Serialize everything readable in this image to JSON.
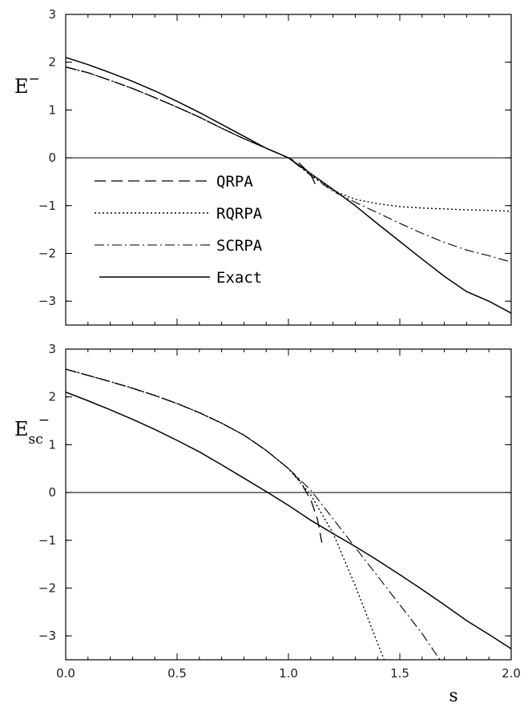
{
  "chart_data": [
    {
      "type": "line",
      "ylabel": "E",
      "ylabel_superscript": "−",
      "xlabel": "",
      "xlim": [
        0.0,
        2.0
      ],
      "ylim": [
        -3.5,
        3.0
      ],
      "yticks": [
        "3",
        "2",
        "1",
        "0",
        "−1",
        "−2",
        "−3"
      ],
      "ytick_values": [
        3,
        2,
        1,
        0,
        -1,
        -2,
        -3
      ],
      "xticks": [
        0.0,
        0.5,
        1.0,
        1.5,
        2.0
      ],
      "grid": false,
      "legend_position": "middle-left",
      "series": [
        {
          "name": "QRPA",
          "style": "dashed",
          "x": [
            0.0,
            0.1,
            0.2,
            0.3,
            0.4,
            0.5,
            0.6,
            0.7,
            0.8,
            0.9,
            1.0,
            1.05,
            1.1,
            1.12
          ],
          "y": [
            1.9,
            1.78,
            1.62,
            1.45,
            1.26,
            1.06,
            0.85,
            0.62,
            0.4,
            0.2,
            0.0,
            -0.12,
            -0.35,
            -0.55
          ]
        },
        {
          "name": "RQRPA",
          "style": "dotted",
          "x": [
            0.0,
            0.1,
            0.2,
            0.3,
            0.4,
            0.5,
            0.6,
            0.7,
            0.8,
            0.9,
            1.0,
            1.1,
            1.2,
            1.3,
            1.4,
            1.5,
            1.6,
            1.7,
            1.8,
            1.9,
            2.0
          ],
          "y": [
            1.9,
            1.78,
            1.62,
            1.45,
            1.26,
            1.06,
            0.85,
            0.62,
            0.4,
            0.2,
            0.0,
            -0.35,
            -0.68,
            -0.87,
            -0.96,
            -1.02,
            -1.05,
            -1.07,
            -1.09,
            -1.1,
            -1.12
          ]
        },
        {
          "name": "SCRPA",
          "style": "dashdot",
          "x": [
            0.0,
            0.1,
            0.2,
            0.3,
            0.4,
            0.5,
            0.6,
            0.7,
            0.8,
            0.9,
            1.0,
            1.1,
            1.2,
            1.3,
            1.4,
            1.5,
            1.6,
            1.7,
            1.8,
            1.9,
            2.0
          ],
          "y": [
            1.9,
            1.78,
            1.62,
            1.45,
            1.26,
            1.06,
            0.85,
            0.62,
            0.4,
            0.2,
            0.0,
            -0.37,
            -0.7,
            -0.93,
            -1.15,
            -1.37,
            -1.58,
            -1.77,
            -1.93,
            -2.05,
            -2.18
          ]
        },
        {
          "name": "Exact",
          "style": "solid",
          "x": [
            0.0,
            0.1,
            0.2,
            0.3,
            0.4,
            0.5,
            0.6,
            0.7,
            0.8,
            0.9,
            1.0,
            1.1,
            1.2,
            1.3,
            1.4,
            1.5,
            1.6,
            1.7,
            1.8,
            1.9,
            2.0
          ],
          "y": [
            2.1,
            1.95,
            1.78,
            1.6,
            1.4,
            1.18,
            0.95,
            0.7,
            0.45,
            0.2,
            0.0,
            -0.33,
            -0.66,
            -1.0,
            -1.38,
            -1.75,
            -2.12,
            -2.48,
            -2.8,
            -3.0,
            -3.25
          ]
        }
      ]
    },
    {
      "type": "line",
      "ylabel": "E",
      "ylabel_subscript": "sc",
      "ylabel_superscript": "−",
      "xlabel": "s",
      "xlim": [
        0.0,
        2.0
      ],
      "ylim": [
        -3.5,
        3.0
      ],
      "yticks": [
        "3",
        "2",
        "1",
        "0",
        "−1",
        "−2",
        "−3"
      ],
      "ytick_values": [
        3,
        2,
        1,
        0,
        -1,
        -2,
        -3
      ],
      "xticks": [
        "0.0",
        "0.5",
        "1.0",
        "1.5",
        "2.0"
      ],
      "xtick_values": [
        0.0,
        0.5,
        1.0,
        1.5,
        2.0
      ],
      "grid": false,
      "series": [
        {
          "name": "QRPA",
          "style": "dashed",
          "x": [
            0.0,
            0.1,
            0.2,
            0.3,
            0.4,
            0.5,
            0.6,
            0.7,
            0.8,
            0.9,
            1.0,
            1.05,
            1.1,
            1.13,
            1.15
          ],
          "y": [
            2.58,
            2.45,
            2.32,
            2.18,
            2.03,
            1.86,
            1.67,
            1.45,
            1.2,
            0.88,
            0.5,
            0.25,
            -0.15,
            -0.55,
            -1.05
          ]
        },
        {
          "name": "RQRPA",
          "style": "dotted",
          "x": [
            0.0,
            0.1,
            0.2,
            0.3,
            0.4,
            0.5,
            0.6,
            0.7,
            0.8,
            0.9,
            1.0,
            1.1,
            1.2,
            1.3,
            1.35,
            1.4,
            1.43
          ],
          "y": [
            2.58,
            2.45,
            2.32,
            2.18,
            2.03,
            1.86,
            1.67,
            1.45,
            1.2,
            0.88,
            0.5,
            -0.05,
            -0.85,
            -1.95,
            -2.55,
            -3.15,
            -3.5
          ]
        },
        {
          "name": "SCRPA",
          "style": "dashdot",
          "x": [
            0.0,
            0.1,
            0.2,
            0.3,
            0.4,
            0.5,
            0.6,
            0.7,
            0.8,
            0.9,
            1.0,
            1.1,
            1.2,
            1.3,
            1.4,
            1.5,
            1.6,
            1.68
          ],
          "y": [
            2.58,
            2.45,
            2.32,
            2.18,
            2.03,
            1.86,
            1.67,
            1.45,
            1.2,
            0.88,
            0.5,
            0.05,
            -0.55,
            -1.15,
            -1.75,
            -2.35,
            -2.95,
            -3.5
          ]
        },
        {
          "name": "Exact",
          "style": "solid",
          "x": [
            0.0,
            0.1,
            0.2,
            0.3,
            0.4,
            0.5,
            0.6,
            0.7,
            0.8,
            0.9,
            1.0,
            1.1,
            1.2,
            1.3,
            1.4,
            1.5,
            1.6,
            1.7,
            1.8,
            1.9,
            2.0
          ],
          "y": [
            2.1,
            1.92,
            1.73,
            1.53,
            1.32,
            1.09,
            0.85,
            0.58,
            0.3,
            0.02,
            -0.27,
            -0.58,
            -0.86,
            -1.13,
            -1.42,
            -1.72,
            -2.03,
            -2.35,
            -2.68,
            -2.97,
            -3.27
          ]
        }
      ]
    }
  ]
}
